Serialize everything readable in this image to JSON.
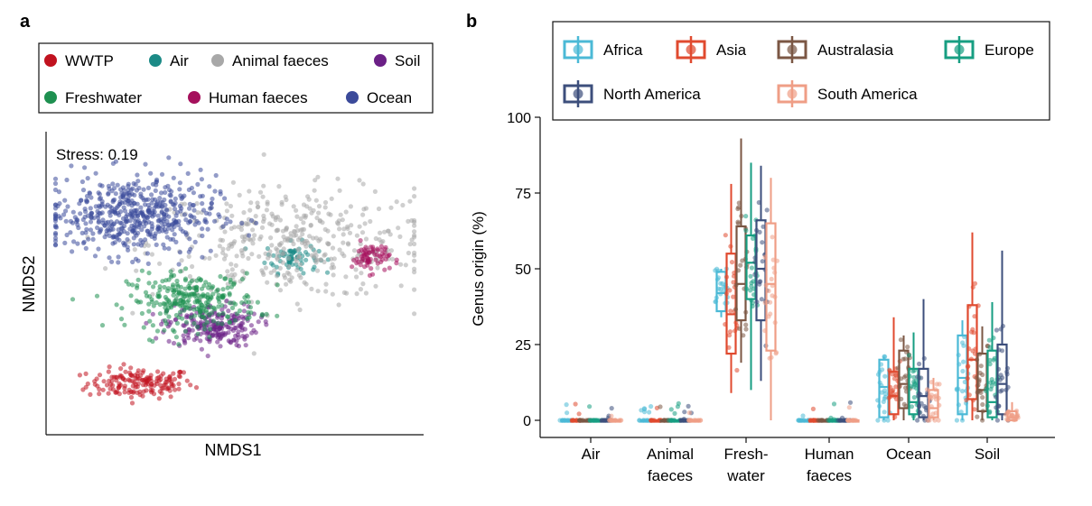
{
  "panel_labels": {
    "a": "a",
    "b": "b"
  },
  "chart_data": [
    {
      "panel": "a",
      "type": "scatter",
      "title": "",
      "xlabel": "NMDS1",
      "ylabel": "NMDS2",
      "annotation": "Stress: 0.19",
      "xlim": [
        -1,
        1
      ],
      "ylim": [
        -1,
        1
      ],
      "grid": false,
      "legend_position": "top",
      "series": [
        {
          "name": "WWTP",
          "color": "#c1121f",
          "center": [
            -0.5,
            -0.66
          ],
          "spread": [
            0.14,
            0.05
          ],
          "count": 160
        },
        {
          "name": "Air",
          "color": "#1b8a86",
          "center": [
            0.3,
            0.17
          ],
          "spread": [
            0.07,
            0.05
          ],
          "count": 70
        },
        {
          "name": "Animal faeces",
          "color": "#a8a8a8",
          "center": [
            0.32,
            0.26
          ],
          "spread": [
            0.38,
            0.18
          ],
          "count": 420
        },
        {
          "name": "Soil",
          "color": "#6b2086",
          "center": [
            -0.12,
            -0.28
          ],
          "spread": [
            0.12,
            0.07
          ],
          "count": 220
        },
        {
          "name": "Freshwater",
          "color": "#1e9050",
          "center": [
            -0.22,
            -0.12
          ],
          "spread": [
            0.17,
            0.09
          ],
          "count": 280
        },
        {
          "name": "Human faeces",
          "color": "#a5105c",
          "center": [
            0.72,
            0.17
          ],
          "spread": [
            0.05,
            0.05
          ],
          "count": 70
        },
        {
          "name": "Ocean",
          "color": "#3b4a9a",
          "center": [
            -0.54,
            0.45
          ],
          "spread": [
            0.22,
            0.13
          ],
          "count": 520
        }
      ]
    },
    {
      "panel": "b",
      "type": "box",
      "title": "",
      "xlabel": "",
      "ylabel": "Genus origin (%)",
      "ylim": [
        0,
        100
      ],
      "yticks": [
        0,
        25,
        50,
        75,
        100
      ],
      "grid": false,
      "legend_position": "top",
      "categories": [
        [
          "Air"
        ],
        [
          "Animal",
          "faeces"
        ],
        [
          "Fresh-",
          "water"
        ],
        [
          "Human",
          "faeces"
        ],
        [
          "Ocean"
        ],
        [
          "Soil"
        ]
      ],
      "series": [
        {
          "name": "Africa",
          "color": "#4bb9d6",
          "boxes": [
            [
              0,
              0,
              0,
              0,
              0
            ],
            [
              0,
              0,
              0,
              0,
              0
            ],
            [
              34,
              36,
              42,
              49,
              50
            ],
            [
              0,
              0,
              0,
              0,
              0
            ],
            [
              0,
              1,
              11,
              20,
              21
            ],
            [
              0,
              2,
              14,
              28,
              33
            ]
          ]
        },
        {
          "name": "Asia",
          "color": "#e04a2f",
          "boxes": [
            [
              0,
              0,
              0,
              0,
              0
            ],
            [
              0,
              0,
              0,
              0,
              0
            ],
            [
              9,
              22,
              35,
              55,
              78
            ],
            [
              0,
              0,
              0,
              0,
              0
            ],
            [
              0,
              2,
              8,
              16,
              34
            ],
            [
              0,
              7,
              20,
              38,
              62
            ]
          ]
        },
        {
          "name": "Australasia",
          "color": "#7b5744",
          "boxes": [
            [
              0,
              0,
              0,
              0,
              0
            ],
            [
              0,
              0,
              0,
              0,
              0
            ],
            [
              19,
              33,
              45,
              64,
              93
            ],
            [
              0,
              0,
              0,
              0,
              0
            ],
            [
              0,
              4,
              12,
              23,
              28
            ],
            [
              0,
              3,
              10,
              22,
              31
            ]
          ]
        },
        {
          "name": "Europe",
          "color": "#179e82",
          "boxes": [
            [
              0,
              0,
              0,
              0,
              0
            ],
            [
              0,
              0,
              0,
              0,
              0
            ],
            [
              10,
              40,
              52,
              61,
              85
            ],
            [
              0,
              0,
              0,
              0,
              0
            ],
            [
              0,
              2,
              6,
              17,
              29
            ],
            [
              0,
              1,
              6,
              23,
              39
            ]
          ]
        },
        {
          "name": "North America",
          "color": "#3d4f7c",
          "boxes": [
            [
              0,
              0,
              0,
              0,
              0
            ],
            [
              0,
              0,
              0,
              0,
              0
            ],
            [
              13,
              33,
              50,
              66,
              84
            ],
            [
              0,
              0,
              0,
              0,
              0
            ],
            [
              0,
              1,
              8,
              17,
              40
            ],
            [
              0,
              2,
              12,
              25,
              56
            ]
          ]
        },
        {
          "name": "South America",
          "color": "#ef9e86",
          "boxes": [
            [
              0,
              0,
              0,
              0,
              0
            ],
            [
              0,
              0,
              0,
              0,
              0
            ],
            [
              0,
              23,
              45,
              65,
              80
            ],
            [
              0,
              0,
              0,
              0,
              0
            ],
            [
              0,
              1,
              4,
              10,
              14
            ],
            [
              0,
              0,
              1,
              3,
              6
            ]
          ]
        }
      ]
    }
  ]
}
